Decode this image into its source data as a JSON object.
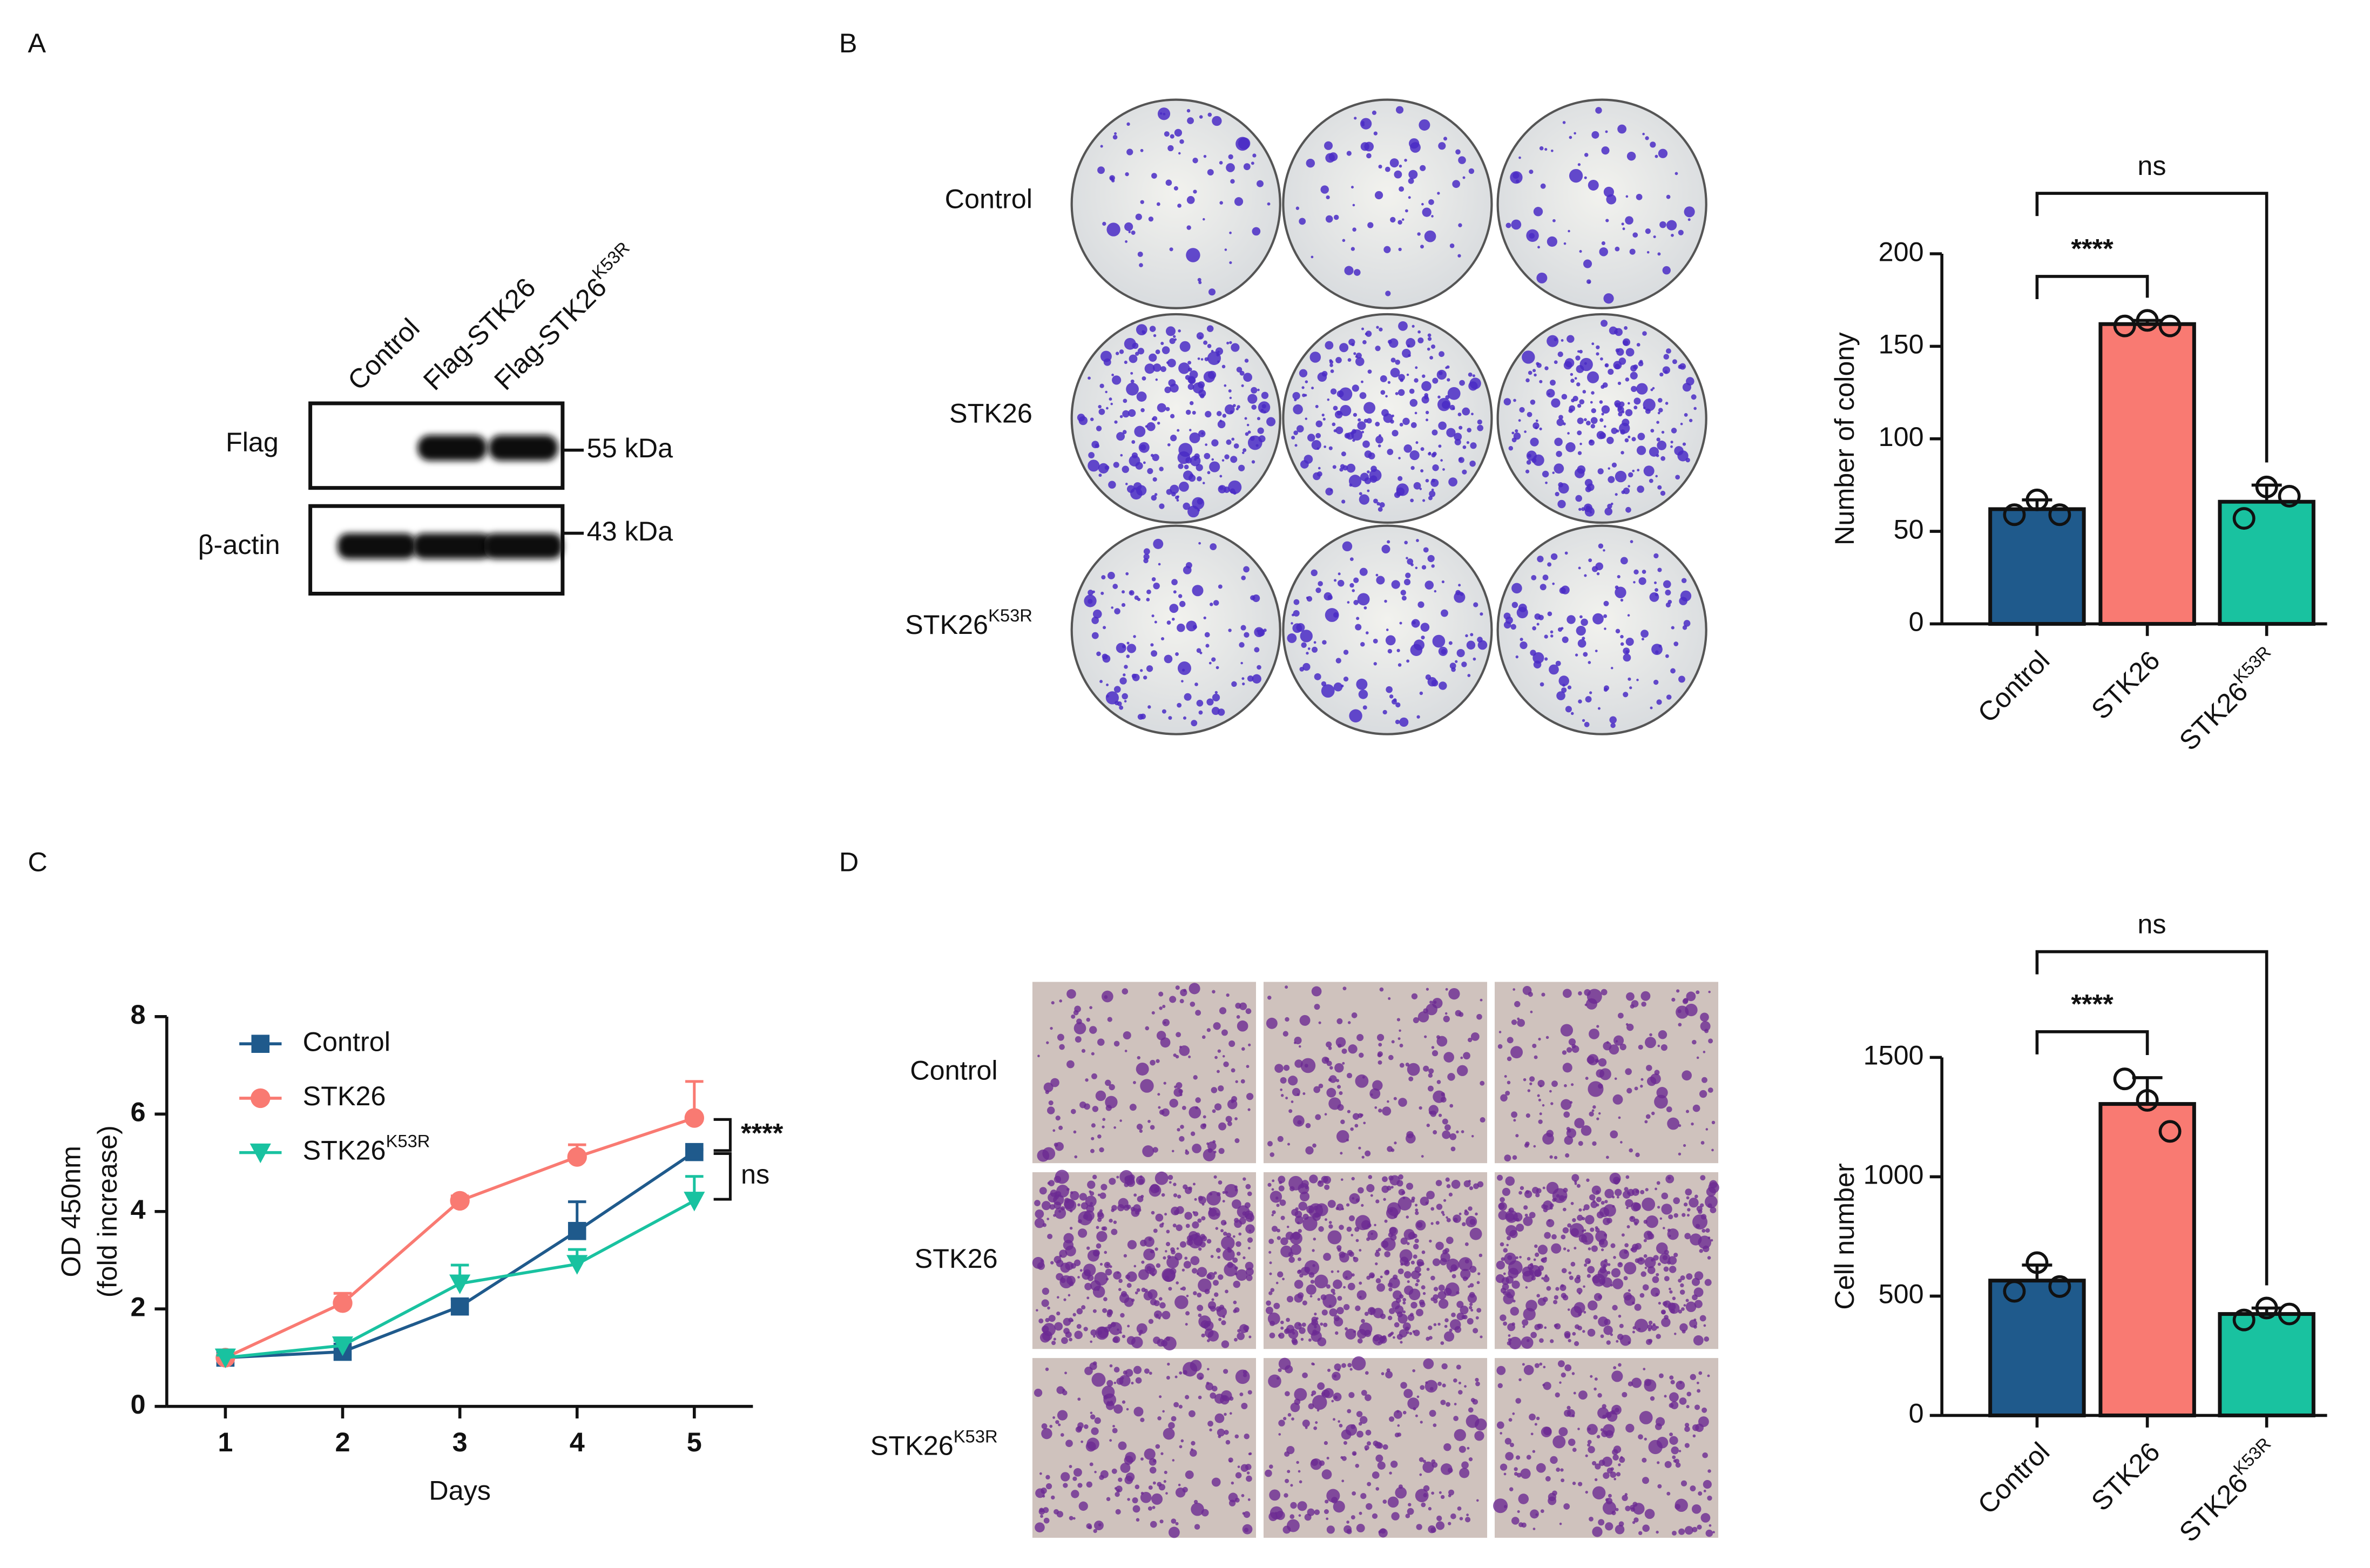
{
  "panel_labels": [
    "A",
    "B",
    "C",
    "D"
  ],
  "western_blot": {
    "lanes": [
      {
        "text": "Control"
      },
      {
        "text": "Flag-STK26"
      },
      {
        "text": "Flag-STK26",
        "sup": "K53R"
      }
    ],
    "rows": [
      "Flag",
      "β-actin"
    ],
    "markers": [
      "55 kDa",
      "43 kDa"
    ]
  },
  "colony_rows": [
    {
      "text": "Control"
    },
    {
      "text": "STK26"
    },
    {
      "text": "STK26",
      "sup": "K53R"
    }
  ],
  "transwell_rows": [
    {
      "text": "Control"
    },
    {
      "text": "STK26"
    },
    {
      "text": "STK26",
      "sup": "K53R"
    }
  ],
  "chart_data": [
    {
      "type": "bar",
      "ylabel": "Number of colony",
      "categories": [
        "Control",
        "STK26",
        "STK26"
      ],
      "category_sup": [
        null,
        null,
        "K53R"
      ],
      "colors": [
        "#1f5a8c",
        "#f97a72",
        "#19c2a0"
      ],
      "values": [
        62,
        162,
        66
      ],
      "errors": [
        5,
        2,
        9
      ],
      "points": [
        [
          59,
          67,
          59
        ],
        [
          161,
          164,
          161
        ],
        [
          57,
          74,
          69
        ]
      ],
      "ylim": [
        0,
        200
      ],
      "yticks": [
        0,
        50,
        100,
        150,
        200
      ],
      "comparisons": [
        {
          "from": 0,
          "to": 1,
          "label": "****"
        },
        {
          "from": 0,
          "to": 2,
          "label": "ns"
        }
      ]
    },
    {
      "type": "line",
      "xlabel": "Days",
      "ylabel": [
        "OD 450nm",
        "(fold increase)"
      ],
      "x": [
        1,
        2,
        3,
        4,
        5
      ],
      "xlim": [
        0.5,
        5.5
      ],
      "xticks": [
        1,
        2,
        3,
        4,
        5
      ],
      "ylim": [
        0,
        8
      ],
      "yticks": [
        0,
        2,
        4,
        6,
        8
      ],
      "series": [
        {
          "name": "Control",
          "color": "#1f5a8c",
          "marker": "square",
          "values": [
            1.0,
            1.12,
            2.05,
            3.6,
            5.22
          ],
          "errors": [
            0.05,
            0.1,
            0.15,
            0.6,
            0.05
          ]
        },
        {
          "name": "STK26",
          "color": "#f97a72",
          "marker": "circle",
          "values": [
            1.0,
            2.12,
            4.22,
            5.12,
            5.92
          ],
          "errors": [
            0.05,
            0.2,
            0.1,
            0.25,
            0.75
          ]
        },
        {
          "name": "STK26",
          "name_sup": "K53R",
          "color": "#19c2a0",
          "marker": "triangle-down",
          "values": [
            1.0,
            1.25,
            2.52,
            2.92,
            4.22
          ],
          "errors": [
            0.05,
            0.1,
            0.38,
            0.3,
            0.5
          ]
        }
      ],
      "legend": "upper left",
      "comparisons": [
        {
          "series": [
            1,
            0
          ],
          "label": "****"
        },
        {
          "series": [
            0,
            2
          ],
          "label": "ns"
        }
      ]
    },
    {
      "type": "bar",
      "ylabel": "Cell number",
      "categories": [
        "Control",
        "STK26",
        "STK26"
      ],
      "category_sup": [
        null,
        null,
        "K53R"
      ],
      "colors": [
        "#1f5a8c",
        "#f97a72",
        "#19c2a0"
      ],
      "values": [
        565,
        1305,
        425
      ],
      "errors": [
        65,
        110,
        25
      ],
      "points": [
        [
          520,
          640,
          540
        ],
        [
          1410,
          1320,
          1190
        ],
        [
          400,
          450,
          425
        ]
      ],
      "ylim": [
        0,
        1500
      ],
      "yticks": [
        0,
        500,
        1000,
        1500
      ],
      "comparisons": [
        {
          "from": 0,
          "to": 1,
          "label": "****"
        },
        {
          "from": 0,
          "to": 2,
          "label": "ns"
        }
      ]
    }
  ]
}
